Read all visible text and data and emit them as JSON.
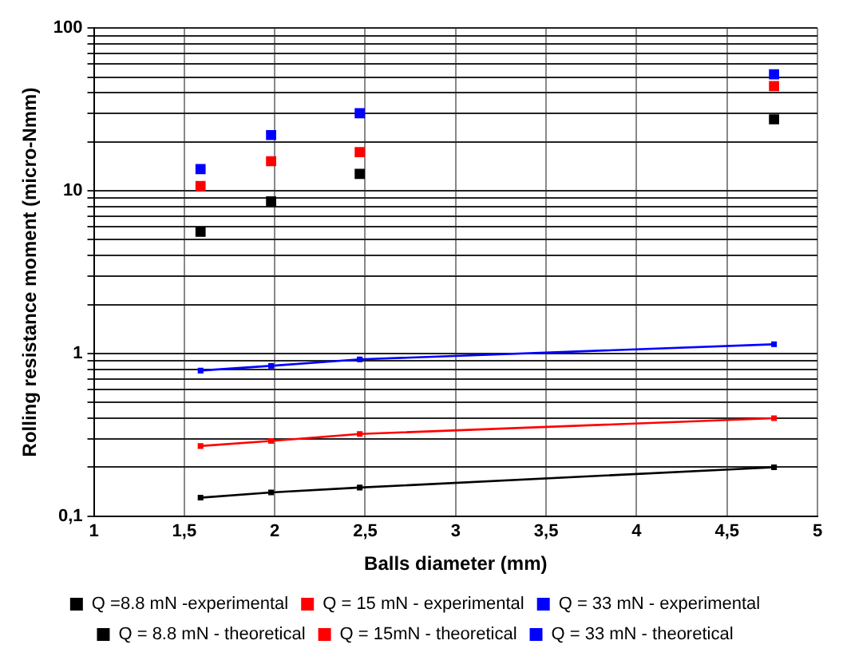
{
  "chart_data": {
    "type": "scatter",
    "xlabel": "Balls diameter (mm)",
    "ylabel": "Rolling resistance moment (micro-Nmm)",
    "x": [
      1.59,
      1.98,
      2.47,
      4.76
    ],
    "series": [
      {
        "name": "Q =8.8 mN -experimental",
        "color": "#000000",
        "values": [
          5.6,
          8.6,
          12.7,
          27.5
        ]
      },
      {
        "name": "Q = 15 mN - experimental",
        "color": "#ff0000",
        "values": [
          10.7,
          15.2,
          17.3,
          44
        ]
      },
      {
        "name": "Q = 33 mN - experimental",
        "color": "#0000ff",
        "values": [
          13.6,
          22,
          30,
          52
        ]
      },
      {
        "name": "Q = 8.8 mN - theoretical",
        "type": "line",
        "color": "#000000",
        "values": [
          0.13,
          0.14,
          0.15,
          0.2
        ]
      },
      {
        "name": "Q = 15mN - theoretical",
        "type": "line",
        "color": "#ff0000",
        "values": [
          0.27,
          0.29,
          0.32,
          0.4
        ]
      },
      {
        "name": "Q = 33 mN - theoretical",
        "type": "line",
        "color": "#0000ff",
        "values": [
          0.785,
          0.84,
          0.92,
          1.14
        ]
      }
    ],
    "marker": "square",
    "log": "y",
    "grid": true,
    "legend": "bottom",
    "xlim": [
      1,
      5
    ],
    "xticks": [
      1,
      {
        "value": 1.5,
        "label": "1,5"
      },
      2,
      {
        "value": 2.5,
        "label": "2,5"
      },
      3,
      {
        "value": 3.5,
        "label": "3,5"
      },
      4,
      {
        "value": 4.5,
        "label": "4,5"
      },
      5
    ],
    "ylim": [
      0.1,
      100
    ],
    "yticks": [
      {
        "value": 0.1,
        "label": "0,1"
      },
      {
        "value": 0.2,
        "label": null
      },
      {
        "value": 0.3,
        "label": null
      },
      {
        "value": 0.4,
        "label": null
      },
      {
        "value": 0.5,
        "label": null
      },
      {
        "value": 0.6,
        "label": null
      },
      {
        "value": 0.7,
        "label": null
      },
      {
        "value": 0.8,
        "label": null
      },
      {
        "value": 0.9,
        "label": null
      },
      1,
      {
        "value": 2,
        "label": null
      },
      {
        "value": 3,
        "label": null
      },
      {
        "value": 4,
        "label": null
      },
      {
        "value": 5,
        "label": null
      },
      {
        "value": 6,
        "label": null
      },
      {
        "value": 7,
        "label": null
      },
      {
        "value": 8,
        "label": null
      },
      {
        "value": 9,
        "label": null
      },
      10,
      {
        "value": 20,
        "label": null
      },
      {
        "value": 30,
        "label": null
      },
      {
        "value": 40,
        "label": null
      },
      {
        "value": 50,
        "label": null
      },
      {
        "value": 60,
        "label": null
      },
      {
        "value": 70,
        "label": null
      },
      {
        "value": 80,
        "label": null
      },
      {
        "value": 90,
        "label": null
      },
      100
    ]
  }
}
